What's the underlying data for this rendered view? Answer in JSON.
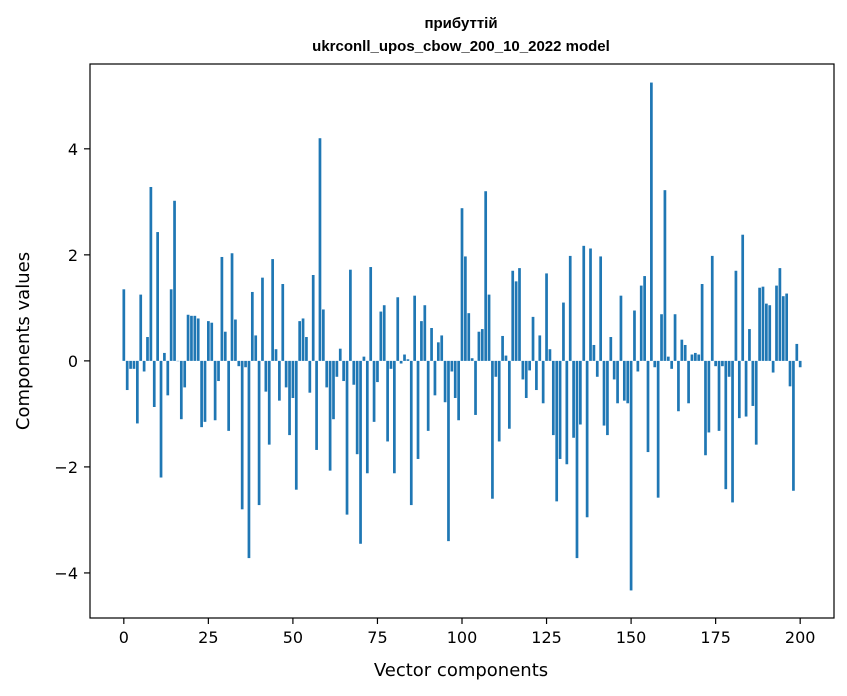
{
  "chart_data": {
    "type": "bar",
    "title_line1": "прибуттій",
    "title_line2": "ukrconll_upos_cbow_200_10_2022 model",
    "xlabel": "Vector components",
    "ylabel": "Components values",
    "xlim": [
      -10,
      210
    ],
    "ylim": [
      -4.85,
      5.6
    ],
    "xticks": [
      0,
      25,
      50,
      75,
      100,
      125,
      150,
      175,
      200
    ],
    "yticks": [
      -4,
      -2,
      0,
      2,
      4
    ],
    "ytick_labels": [
      "−4",
      "−2",
      "0",
      "2",
      "4"
    ],
    "bar_color": "#1f77b4",
    "grid": false,
    "legend": "none",
    "values": [
      1.35,
      -0.55,
      -0.15,
      -0.15,
      -1.18,
      1.25,
      -0.2,
      0.45,
      3.28,
      -0.87,
      2.43,
      -2.2,
      0.15,
      -0.65,
      1.35,
      3.02,
      0.0,
      -1.1,
      -0.5,
      0.87,
      0.85,
      0.85,
      0.8,
      -1.25,
      -1.15,
      0.75,
      0.72,
      -1.12,
      -0.38,
      1.96,
      0.55,
      -1.32,
      2.03,
      0.78,
      -0.1,
      -2.8,
      -0.12,
      -3.72,
      1.3,
      0.48,
      -2.72,
      1.57,
      -0.58,
      -1.58,
      1.92,
      0.22,
      -0.75,
      1.45,
      -0.5,
      -1.4,
      -0.7,
      -2.43,
      0.75,
      0.8,
      0.45,
      -0.6,
      1.62,
      -1.68,
      4.2,
      0.97,
      -0.5,
      -2.07,
      -1.1,
      -0.3,
      0.23,
      -0.38,
      -2.9,
      1.72,
      -0.45,
      -1.76,
      -3.45,
      0.08,
      -2.12,
      1.77,
      -1.15,
      -0.4,
      0.93,
      1.05,
      -1.52,
      -0.15,
      -2.12,
      1.2,
      -0.05,
      0.12,
      0.03,
      -2.72,
      1.23,
      -1.85,
      0.75,
      1.05,
      -1.32,
      0.62,
      -0.65,
      0.35,
      0.48,
      -0.78,
      -3.4,
      -0.2,
      -0.7,
      -1.12,
      2.88,
      1.97,
      0.9,
      0.05,
      -1.02,
      0.55,
      0.6,
      3.2,
      1.25,
      -2.6,
      -0.3,
      -1.52,
      0.47,
      0.1,
      -1.28,
      1.7,
      1.5,
      1.75,
      -0.35,
      -0.7,
      -0.18,
      0.83,
      -0.55,
      0.48,
      -0.8,
      1.65,
      0.22,
      -1.4,
      -2.65,
      -1.85,
      1.1,
      -1.95,
      1.98,
      -1.45,
      -3.72,
      -1.2,
      2.17,
      -2.95,
      2.12,
      0.3,
      -0.3,
      1.97,
      -1.22,
      -1.4,
      0.45,
      -0.35,
      -0.8,
      1.23,
      -0.75,
      -0.8,
      -4.33,
      0.95,
      -0.2,
      1.42,
      1.6,
      -1.72,
      5.25,
      -0.12,
      -2.58,
      0.88,
      3.22,
      0.08,
      -0.15,
      0.88,
      -0.95,
      0.4,
      0.3,
      -0.8,
      0.12,
      0.15,
      0.12,
      1.45,
      -1.78,
      -1.35,
      1.98,
      -0.1,
      -1.32,
      -0.1,
      -2.42,
      -0.3,
      -2.67,
      1.7,
      -1.08,
      2.38,
      -1.05,
      0.6,
      -0.85,
      -1.58,
      1.38,
      1.4,
      1.08,
      1.05,
      -0.22,
      1.42,
      1.75,
      1.22,
      1.27,
      -0.48,
      -2.45,
      0.32,
      -0.12
    ]
  }
}
